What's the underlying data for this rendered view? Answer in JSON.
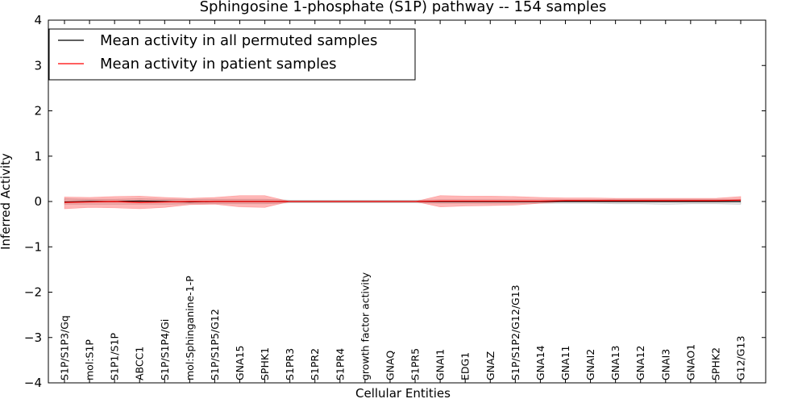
{
  "chart_data": {
    "type": "line",
    "title": "Sphingosine 1-phosphate (S1P) pathway -- 154 samples",
    "xlabel": "Cellular Entities",
    "ylabel": "Inferred Activity",
    "ylim": [
      -4,
      4
    ],
    "yticks": [
      -4,
      -3,
      -2,
      -1,
      0,
      1,
      2,
      3,
      4
    ],
    "ytick_labels": [
      "−4",
      "−3",
      "−2",
      "−1",
      "0",
      "1",
      "2",
      "3",
      "4"
    ],
    "grid": false,
    "legend_position": "top-left",
    "categories": [
      "S1P/S1P3/Gq",
      "mol:S1P",
      "S1P1/S1P",
      "ABCC1",
      "S1P/S1P4/Gi",
      "mol:Sphinganine-1-P",
      "S1P/S1P5/G12",
      "GNA15",
      "SPHK1",
      "S1PR3",
      "S1PR2",
      "S1PR4",
      "growth factor activity",
      "GNAQ",
      "S1PR5",
      "GNAI1",
      "EDG1",
      "GNAZ",
      "S1P/S1P2/G12/G13",
      "GNA14",
      "GNA11",
      "GNAI2",
      "GNA13",
      "GNA12",
      "GNAI3",
      "GNAO1",
      "SPHK2",
      "G12/G13"
    ],
    "series": [
      {
        "name": "Mean activity in all permuted samples",
        "color": "#000000",
        "values": [
          -0.01,
          0.0,
          0.0,
          0.01,
          0.0,
          -0.01,
          0.0,
          0.0,
          0.0,
          0.0,
          0.0,
          0.0,
          0.0,
          0.0,
          0.0,
          0.0,
          0.0,
          0.0,
          0.0,
          0.0,
          0.0,
          0.0,
          0.0,
          0.0,
          0.0,
          0.0,
          0.0,
          0.0
        ],
        "band_lower": [
          -0.06,
          -0.06,
          -0.06,
          -0.06,
          -0.06,
          -0.05,
          -0.05,
          -0.05,
          -0.05,
          -0.03,
          -0.03,
          -0.03,
          -0.03,
          -0.03,
          -0.03,
          -0.04,
          -0.04,
          -0.04,
          -0.04,
          -0.04,
          -0.04,
          -0.04,
          -0.05,
          -0.05,
          -0.06,
          -0.05,
          -0.05,
          -0.06
        ],
        "band_upper": [
          0.06,
          0.05,
          0.05,
          0.06,
          0.05,
          0.05,
          0.05,
          0.05,
          0.05,
          0.03,
          0.03,
          0.03,
          0.03,
          0.03,
          0.03,
          0.04,
          0.04,
          0.04,
          0.04,
          0.04,
          0.04,
          0.04,
          0.05,
          0.05,
          0.05,
          0.05,
          0.05,
          0.05
        ]
      },
      {
        "name": "Mean activity in patient samples",
        "color": "#ff0000",
        "values": [
          -0.02,
          -0.01,
          0.0,
          -0.02,
          -0.01,
          0.0,
          0.0,
          0.0,
          0.0,
          0.0,
          0.0,
          0.0,
          0.0,
          0.0,
          0.0,
          0.01,
          0.01,
          0.01,
          0.01,
          0.01,
          0.02,
          0.02,
          0.02,
          0.02,
          0.02,
          0.02,
          0.02,
          0.03
        ],
        "band_lower": [
          -0.16,
          -0.13,
          -0.14,
          -0.16,
          -0.13,
          -0.07,
          -0.06,
          -0.12,
          -0.13,
          0.0,
          0.0,
          0.0,
          0.0,
          0.0,
          0.0,
          -0.12,
          -0.1,
          -0.09,
          -0.08,
          -0.04,
          0.0,
          0.0,
          0.0,
          0.0,
          0.0,
          0.0,
          0.0,
          0.0
        ],
        "band_upper": [
          0.1,
          0.09,
          0.11,
          0.12,
          0.09,
          0.07,
          0.09,
          0.13,
          0.13,
          0.0,
          0.0,
          0.0,
          0.0,
          0.0,
          0.0,
          0.13,
          0.12,
          0.12,
          0.11,
          0.09,
          0.08,
          0.08,
          0.07,
          0.07,
          0.07,
          0.07,
          0.07,
          0.11
        ]
      }
    ]
  }
}
